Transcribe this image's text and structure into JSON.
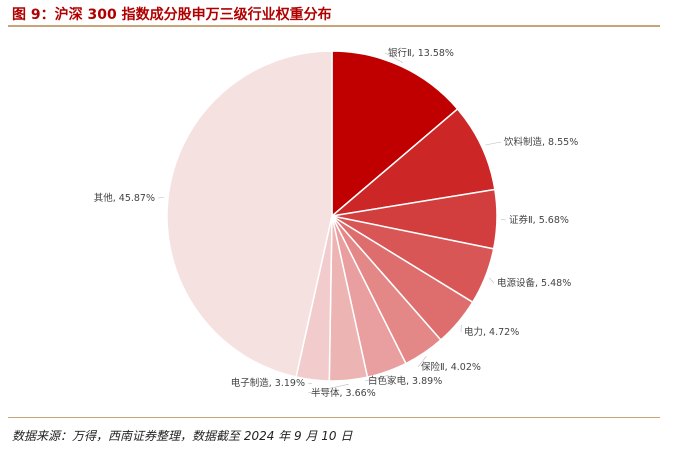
{
  "figure": {
    "title": "图 9：沪深 300 指数成分股申万三级行业权重分布",
    "source": "数据来源：万得，西南证券整理，数据截至 2024 年 9 月 10 日"
  },
  "chart_data": {
    "type": "pie",
    "start": "12-o'clock, clockwise",
    "slices": [
      {
        "label": "银行Ⅱ, 13.58%",
        "name": "银行Ⅱ",
        "value": 13.58,
        "color": "#c00000"
      },
      {
        "label": "饮料制造, 8.55%",
        "name": "饮料制造",
        "value": 8.55,
        "color": "#cc2626"
      },
      {
        "label": "证券Ⅱ, 5.68%",
        "name": "证券Ⅱ",
        "value": 5.68,
        "color": "#d23e3e"
      },
      {
        "label": "电源设备, 5.48%",
        "name": "电源设备",
        "value": 5.48,
        "color": "#d95656"
      },
      {
        "label": "电力, 4.72%",
        "name": "电力",
        "value": 4.72,
        "color": "#de6e6e"
      },
      {
        "label": "保险Ⅱ, 4.02%",
        "name": "保险Ⅱ",
        "value": 4.02,
        "color": "#e48787"
      },
      {
        "label": "白色家电, 3.89%",
        "name": "白色家电",
        "value": 3.89,
        "color": "#e99f9f"
      },
      {
        "label": "半导体, 3.66%",
        "name": "半导体",
        "value": 3.66,
        "color": "#edb4b4"
      },
      {
        "label": "电子制造, 3.19%",
        "name": "电子制造",
        "value": 3.19,
        "color": "#f2cccc"
      },
      {
        "label": "其他, 45.87%",
        "name": "其他",
        "value": 45.87,
        "color": "#f6e1e1"
      }
    ]
  }
}
